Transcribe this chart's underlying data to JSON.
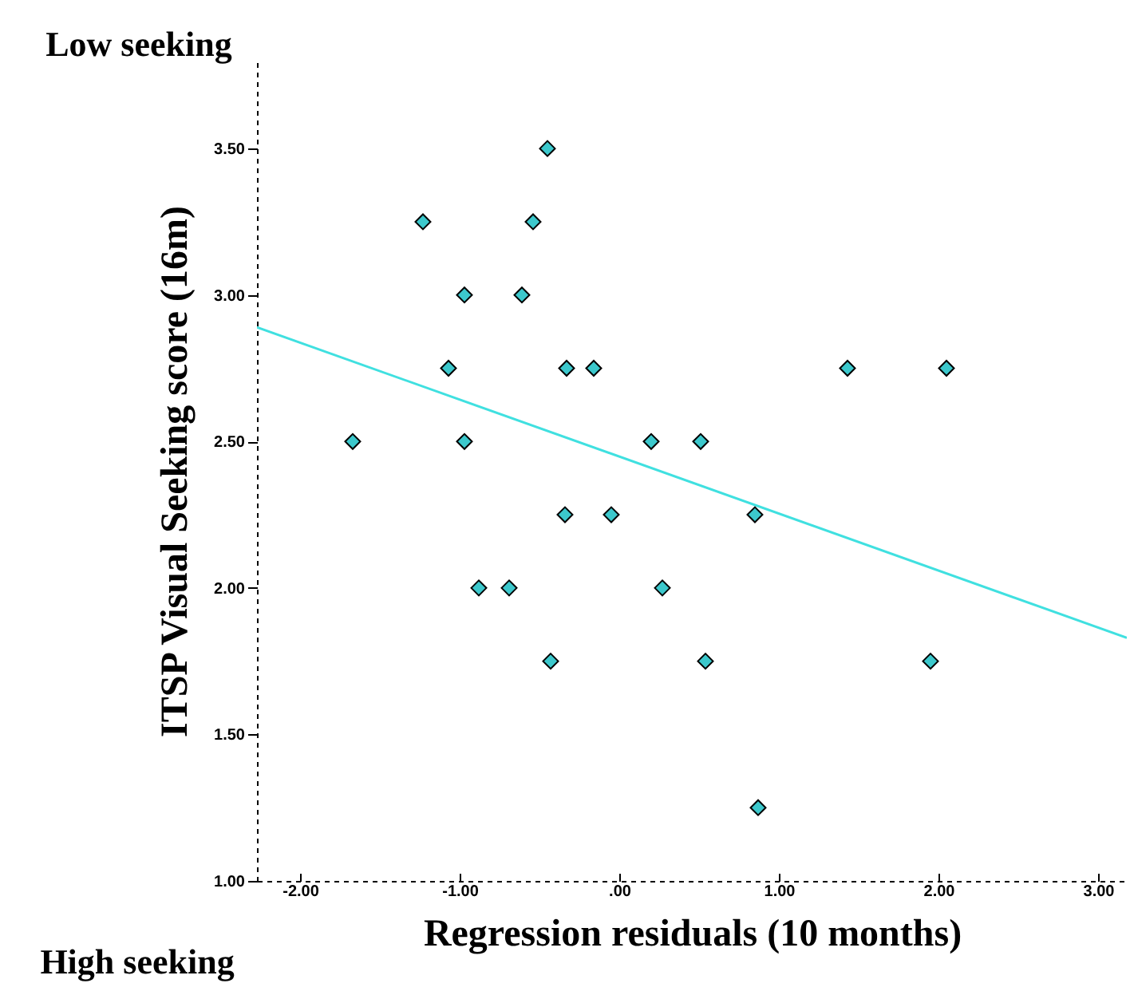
{
  "chart_data": {
    "type": "scatter",
    "xlabel": "Regression residuals (10 months)",
    "ylabel": "ITSP Visual Seeking score (16m)",
    "annotations": [
      "Low seeking",
      "High seeking"
    ],
    "xlim": [
      -2.27,
      3.18
    ],
    "ylim": [
      1.0,
      3.8
    ],
    "xticks": [
      {
        "value": -2,
        "label": "-2.00"
      },
      {
        "value": -1,
        "label": "-1.00"
      },
      {
        "value": 0,
        "label": ".00"
      },
      {
        "value": 1,
        "label": "1.00"
      },
      {
        "value": 2,
        "label": "2.00"
      },
      {
        "value": 3,
        "label": "3.00"
      }
    ],
    "yticks": [
      {
        "value": 1,
        "label": "1.00"
      },
      {
        "value": 1.5,
        "label": "1.50"
      },
      {
        "value": 2,
        "label": "2.00"
      },
      {
        "value": 2.5,
        "label": "2.50"
      },
      {
        "value": 3,
        "label": "3.00"
      },
      {
        "value": 3.5,
        "label": "3.50"
      }
    ],
    "series": [
      {
        "type": "scatter",
        "marker": "diamond",
        "color": "#3cc8cc",
        "x": [
          -0.45,
          -1.23,
          -0.54,
          -0.97,
          -0.61,
          -1.07,
          -0.33,
          -0.16,
          -1.67,
          -0.97,
          0.2,
          0.51,
          -0.34,
          -0.05,
          -0.88,
          -0.69,
          0.27,
          -0.43,
          0.54,
          1.43,
          2.05,
          0.85,
          1.95,
          0.87
        ],
        "values": [
          3.5,
          3.25,
          3.25,
          3.0,
          3.0,
          2.75,
          2.75,
          2.75,
          2.5,
          2.5,
          2.5,
          2.5,
          2.25,
          2.25,
          2.0,
          2.0,
          2.0,
          1.75,
          1.75,
          2.75,
          2.75,
          2.25,
          1.75,
          1.25
        ]
      },
      {
        "type": "line",
        "marker": "none",
        "color": "#40e0e0",
        "x": [
          -2.27,
          3.18
        ],
        "values": [
          2.89,
          1.83
        ]
      }
    ]
  }
}
